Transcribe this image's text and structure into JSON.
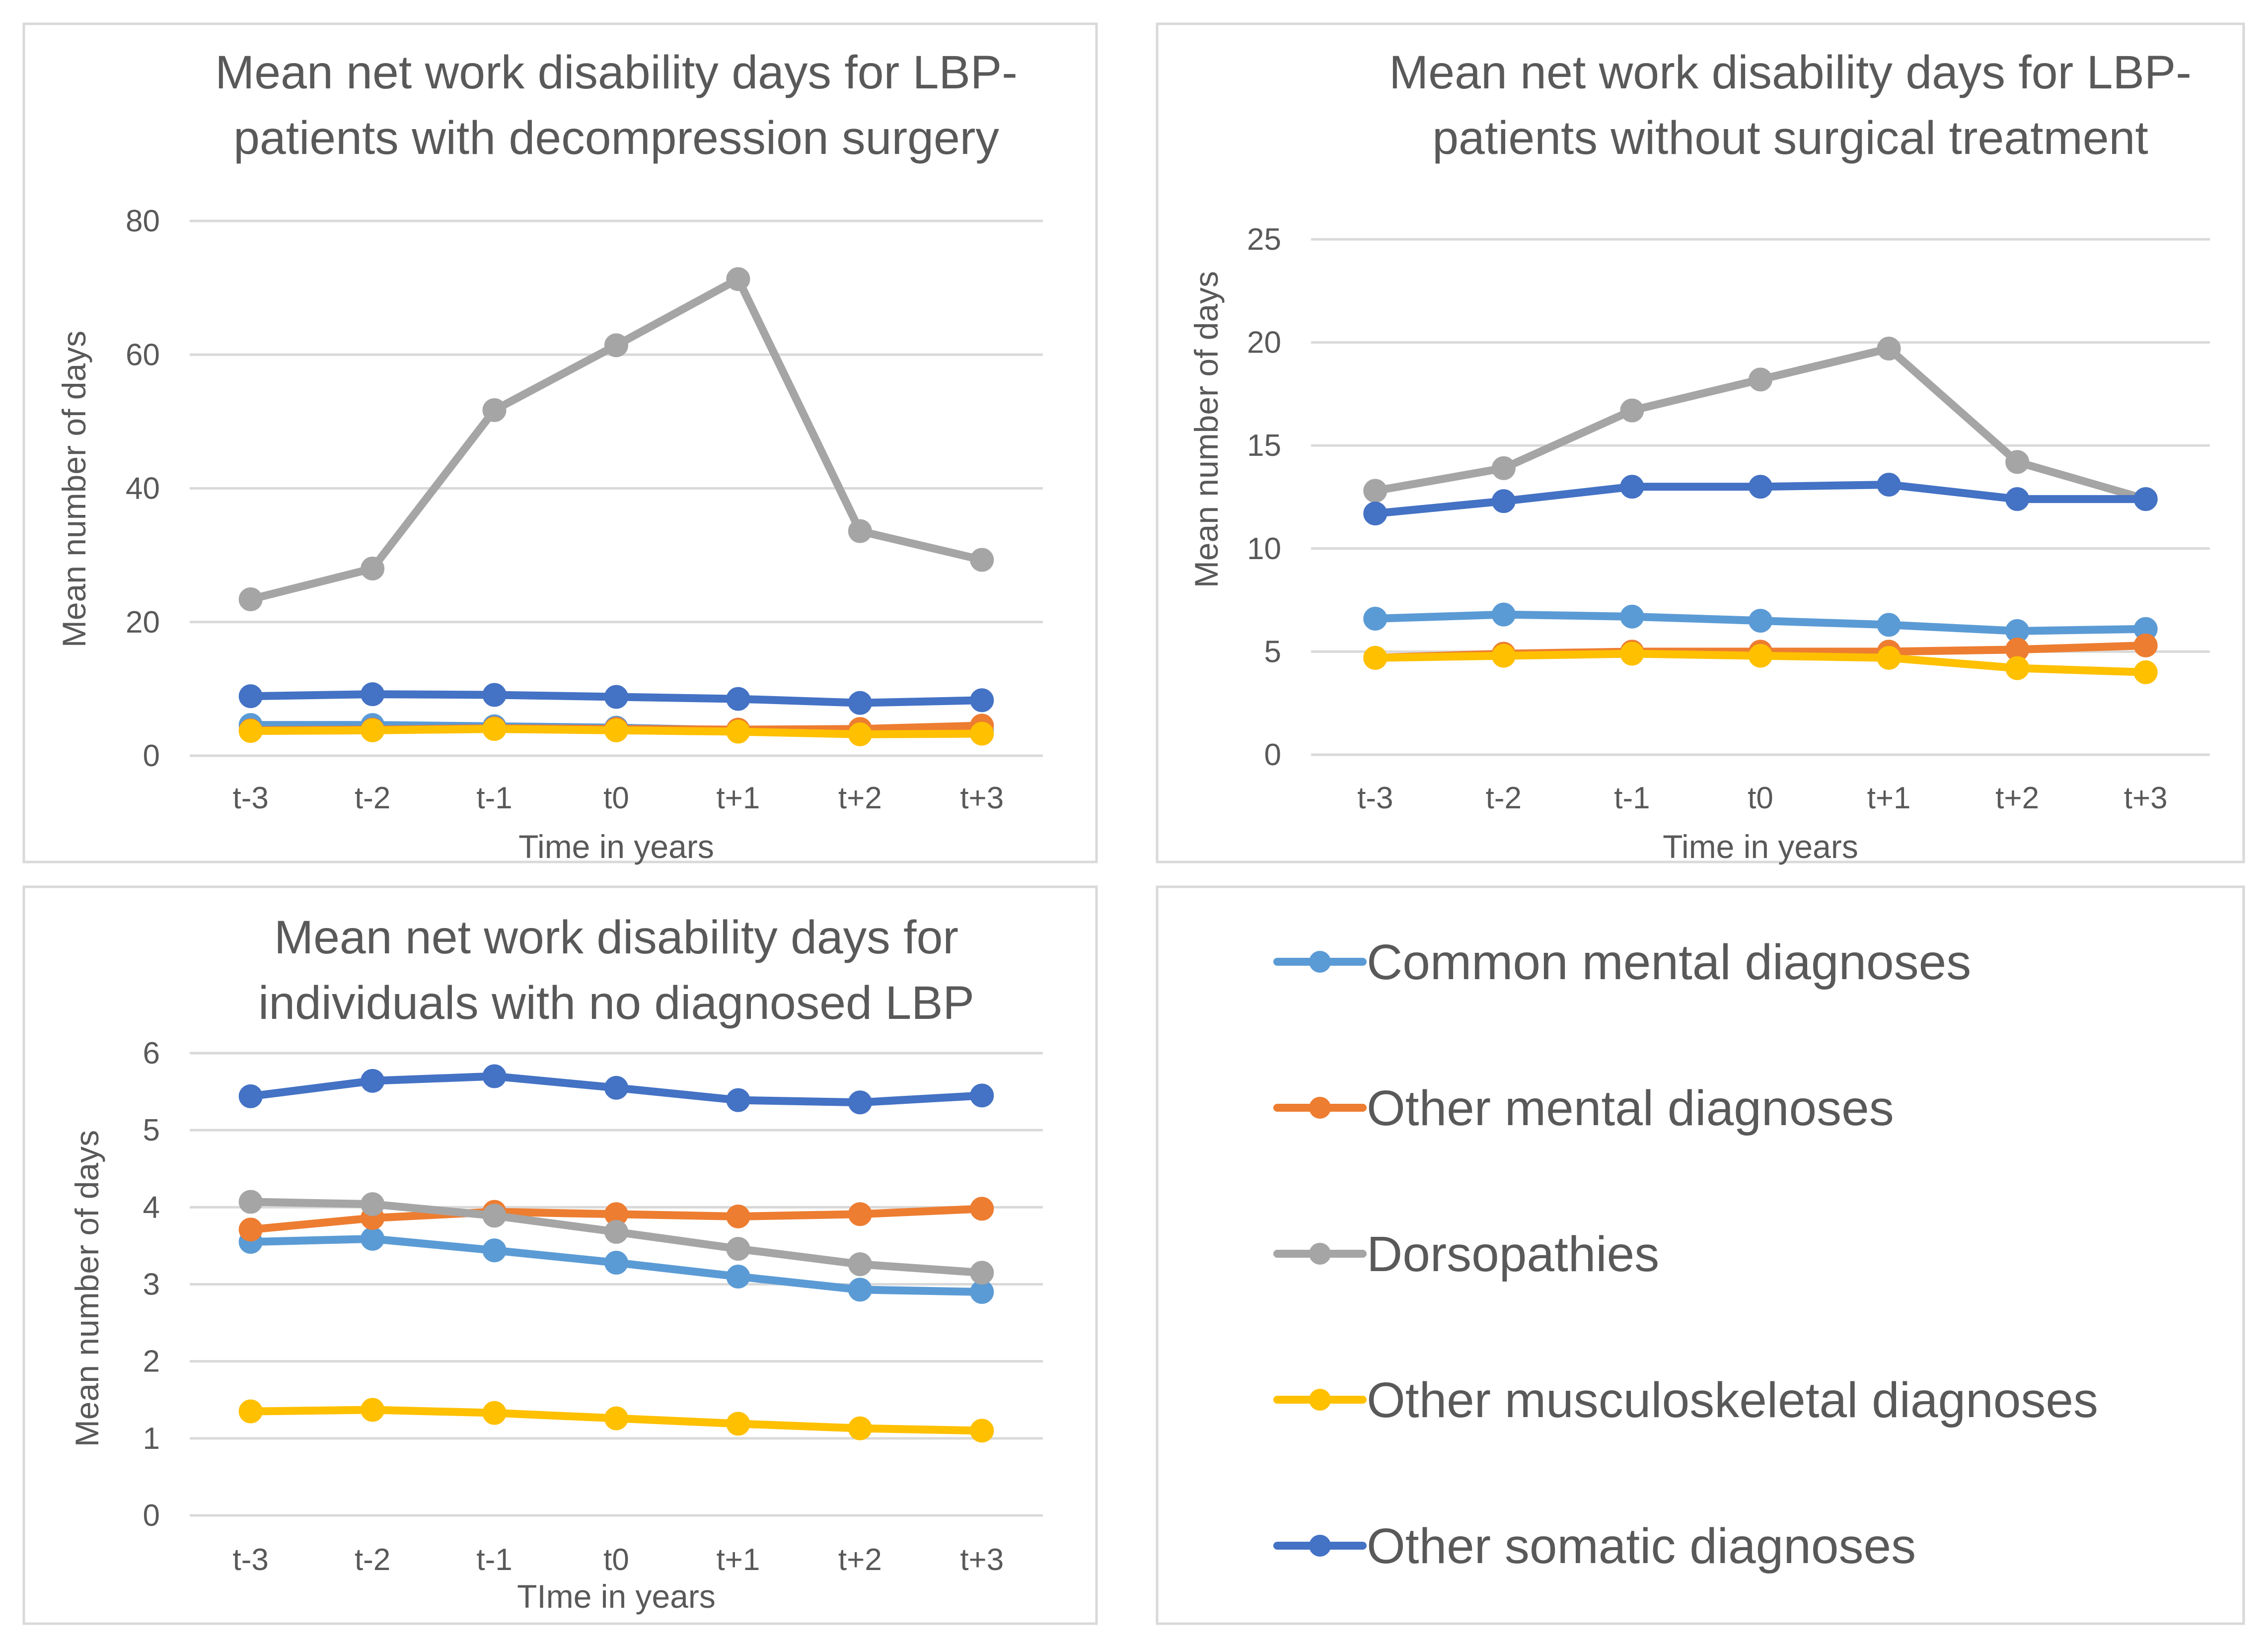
{
  "series_styles": [
    {
      "name": "Common mental diagnoses",
      "color": "#5b9bd5"
    },
    {
      "name": "Other mental diagnoses",
      "color": "#ed7d31"
    },
    {
      "name": "Dorsopathies",
      "color": "#a5a5a5"
    },
    {
      "name": "Other musculoskeletal diagnoses",
      "color": "#ffc000"
    },
    {
      "name": "Other somatic diagnoses",
      "color": "#4472c4"
    }
  ],
  "chart_data": [
    {
      "type": "line",
      "title": "Mean net work disability days for LBP-patients with decompression surgery",
      "title_lines": [
        "Mean net work disability days for LBP-",
        "patients with decompression surgery"
      ],
      "xlabel": "Time in years",
      "ylabel": "Mean number of days",
      "categories": [
        "t-3",
        "t-2",
        "t-1",
        "t0",
        "t+1",
        "t+2",
        "t+3"
      ],
      "ylim": [
        0,
        80
      ],
      "yticks": [
        0,
        20,
        40,
        60,
        80
      ],
      "grid": true,
      "series": [
        {
          "name": "Common mental diagnoses",
          "values": [
            4.6,
            4.6,
            4.4,
            4.2,
            3.8,
            3.6,
            3.8
          ]
        },
        {
          "name": "Other mental diagnoses",
          "values": [
            3.8,
            3.9,
            4.1,
            4.0,
            3.9,
            4.0,
            4.5
          ]
        },
        {
          "name": "Dorsopathies",
          "values": [
            23.4,
            28.0,
            51.7,
            61.4,
            71.3,
            33.6,
            29.3
          ]
        },
        {
          "name": "Other musculoskeletal diagnoses",
          "values": [
            3.7,
            3.8,
            4.0,
            3.8,
            3.6,
            3.2,
            3.3
          ]
        },
        {
          "name": "Other somatic diagnoses",
          "values": [
            8.9,
            9.2,
            9.1,
            8.8,
            8.5,
            7.9,
            8.3
          ]
        }
      ]
    },
    {
      "type": "line",
      "title": "Mean net work disability days for LBP-patients without surgical treatment",
      "title_lines": [
        "Mean net work disability days for LBP-",
        "patients without surgical treatment"
      ],
      "xlabel": "Time in years",
      "ylabel": "Mean number of days",
      "categories": [
        "t-3",
        "t-2",
        "t-1",
        "t0",
        "t+1",
        "t+2",
        "t+3"
      ],
      "ylim": [
        0,
        25
      ],
      "yticks": [
        0,
        5,
        10,
        15,
        20,
        25
      ],
      "grid": true,
      "series": [
        {
          "name": "Common mental diagnoses",
          "values": [
            6.6,
            6.8,
            6.7,
            6.5,
            6.3,
            6.0,
            6.1
          ]
        },
        {
          "name": "Other mental diagnoses",
          "values": [
            4.7,
            4.9,
            5.0,
            5.0,
            5.0,
            5.1,
            5.3
          ]
        },
        {
          "name": "Dorsopathies",
          "values": [
            12.8,
            13.9,
            16.7,
            18.2,
            19.7,
            14.2,
            12.4
          ]
        },
        {
          "name": "Other musculoskeletal diagnoses",
          "values": [
            4.7,
            4.8,
            4.9,
            4.8,
            4.7,
            4.2,
            4.0
          ]
        },
        {
          "name": "Other somatic diagnoses",
          "values": [
            11.7,
            12.3,
            13.0,
            13.0,
            13.1,
            12.4,
            12.4
          ]
        }
      ]
    },
    {
      "type": "line",
      "title": "Mean net work disability days for individuals with no diagnosed LBP",
      "title_lines": [
        "Mean net work disability days for",
        "individuals with no diagnosed LBP"
      ],
      "xlabel": "TIme in years",
      "ylabel": "Mean number of days",
      "categories": [
        "t-3",
        "t-2",
        "t-1",
        "t0",
        "t+1",
        "t+2",
        "t+3"
      ],
      "ylim": [
        0,
        6
      ],
      "yticks": [
        0,
        1,
        2,
        3,
        4,
        5,
        6
      ],
      "grid": true,
      "series": [
        {
          "name": "Common mental diagnoses",
          "values": [
            3.55,
            3.59,
            3.44,
            3.28,
            3.1,
            2.93,
            2.9
          ]
        },
        {
          "name": "Other mental diagnoses",
          "values": [
            3.71,
            3.86,
            3.94,
            3.91,
            3.88,
            3.91,
            3.98
          ]
        },
        {
          "name": "Dorsopathies",
          "values": [
            4.07,
            4.04,
            3.89,
            3.68,
            3.46,
            3.26,
            3.15
          ]
        },
        {
          "name": "Other musculoskeletal diagnoses",
          "values": [
            1.35,
            1.37,
            1.33,
            1.26,
            1.19,
            1.13,
            1.1
          ]
        },
        {
          "name": "Other somatic diagnoses",
          "values": [
            5.44,
            5.64,
            5.7,
            5.55,
            5.39,
            5.36,
            5.45
          ]
        }
      ]
    }
  ]
}
